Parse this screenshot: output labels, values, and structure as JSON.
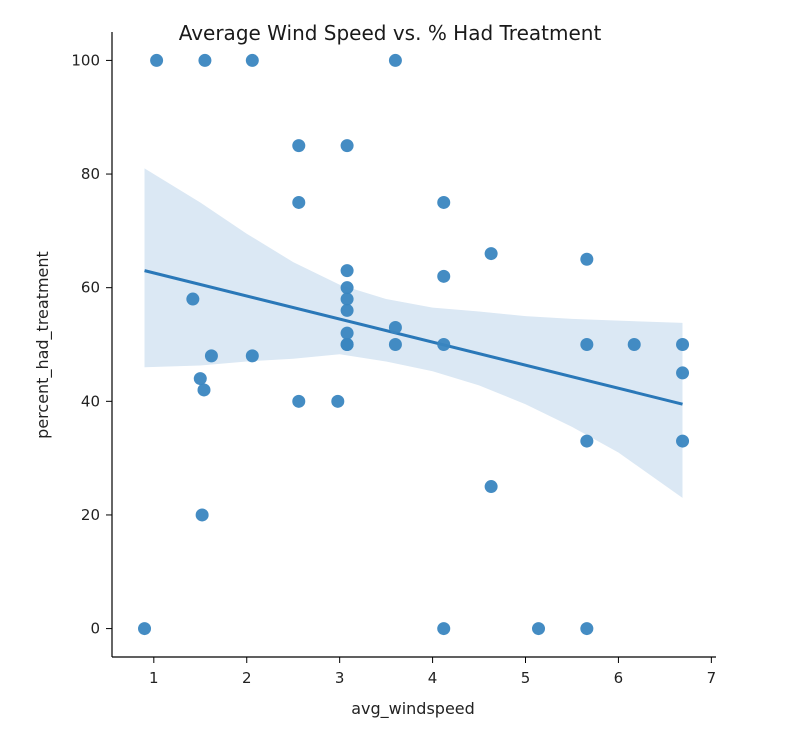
{
  "chart_data": {
    "type": "scatter",
    "title": "Average Wind Speed vs. % Had Treatment",
    "xlabel": "avg_windspeed",
    "ylabel": "percent_had_treatment",
    "xlim": [
      0.55,
      7.05
    ],
    "ylim": [
      -5,
      105
    ],
    "xticks": [
      "1",
      "2",
      "3",
      "4",
      "5",
      "6",
      "7"
    ],
    "yticks": [
      "0",
      "20",
      "40",
      "60",
      "80",
      "100"
    ],
    "grid": false,
    "colors": {
      "points": "#3a86c0",
      "line": "#2a78b8",
      "band": "#dbe8f4"
    },
    "points": [
      {
        "x": 0.9,
        "y": 0
      },
      {
        "x": 1.03,
        "y": 100
      },
      {
        "x": 1.42,
        "y": 58
      },
      {
        "x": 1.5,
        "y": 44
      },
      {
        "x": 1.52,
        "y": 20
      },
      {
        "x": 1.54,
        "y": 42
      },
      {
        "x": 1.55,
        "y": 100
      },
      {
        "x": 1.62,
        "y": 48
      },
      {
        "x": 2.06,
        "y": 100
      },
      {
        "x": 2.06,
        "y": 48
      },
      {
        "x": 2.56,
        "y": 85
      },
      {
        "x": 2.56,
        "y": 75
      },
      {
        "x": 2.56,
        "y": 40
      },
      {
        "x": 2.98,
        "y": 40
      },
      {
        "x": 3.08,
        "y": 85
      },
      {
        "x": 3.08,
        "y": 63
      },
      {
        "x": 3.08,
        "y": 60
      },
      {
        "x": 3.08,
        "y": 58
      },
      {
        "x": 3.08,
        "y": 56
      },
      {
        "x": 3.08,
        "y": 52
      },
      {
        "x": 3.08,
        "y": 50
      },
      {
        "x": 3.08,
        "y": 50
      },
      {
        "x": 3.6,
        "y": 100
      },
      {
        "x": 3.6,
        "y": 53
      },
      {
        "x": 3.6,
        "y": 50
      },
      {
        "x": 4.12,
        "y": 75
      },
      {
        "x": 4.12,
        "y": 62
      },
      {
        "x": 4.12,
        "y": 50
      },
      {
        "x": 4.12,
        "y": 0
      },
      {
        "x": 4.63,
        "y": 66
      },
      {
        "x": 4.63,
        "y": 25
      },
      {
        "x": 5.14,
        "y": 0
      },
      {
        "x": 5.66,
        "y": 65
      },
      {
        "x": 5.66,
        "y": 50
      },
      {
        "x": 5.66,
        "y": 33
      },
      {
        "x": 5.66,
        "y": 0
      },
      {
        "x": 6.17,
        "y": 50
      },
      {
        "x": 6.69,
        "y": 50
      },
      {
        "x": 6.69,
        "y": 45
      },
      {
        "x": 6.69,
        "y": 33
      }
    ],
    "regression": {
      "x": [
        0.9,
        6.69
      ],
      "y": [
        63,
        39.5
      ]
    },
    "confidence_band": {
      "x": [
        0.9,
        1.5,
        2.0,
        2.5,
        3.0,
        3.5,
        4.0,
        4.5,
        5.0,
        5.5,
        6.0,
        6.69
      ],
      "upper": [
        81,
        75,
        69.5,
        64.5,
        60.5,
        58,
        56.5,
        55.8,
        55,
        54.5,
        54.2,
        53.8
      ],
      "lower": [
        46,
        46.3,
        47,
        47.5,
        48.3,
        47,
        45.3,
        42.8,
        39.5,
        35.5,
        31,
        23
      ]
    }
  }
}
